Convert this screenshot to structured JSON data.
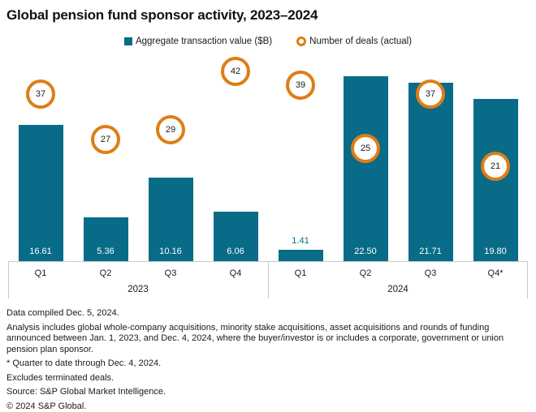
{
  "title": "Global pension fund sponsor activity, 2023–2024",
  "colors": {
    "bar": "#086b87",
    "deals_ring": "#df7d16",
    "axis_line": "#c9c9c9",
    "text": "#1a1a1a",
    "bar_label_inside": "#ffffff"
  },
  "legend": {
    "items": [
      {
        "label": "Aggregate transaction value ($B)",
        "marker": "square"
      },
      {
        "label": "Number of deals (actual)",
        "marker": "donut"
      }
    ]
  },
  "chart_data": {
    "type": "bar",
    "categories": [
      "Q1",
      "Q2",
      "Q3",
      "Q4",
      "Q1",
      "Q2",
      "Q3",
      "Q4*"
    ],
    "group_labels": [
      {
        "label": "2023",
        "start_col": 0,
        "end_col": 3
      },
      {
        "label": "2024",
        "start_col": 4,
        "end_col": 7
      }
    ],
    "series": [
      {
        "name": "Aggregate transaction value ($B)",
        "type": "bar",
        "values": [
          16.61,
          5.36,
          10.16,
          6.06,
          1.41,
          22.5,
          21.71,
          19.8
        ],
        "value_labels": [
          "16.61",
          "5.36",
          "10.16",
          "6.06",
          "1.41",
          "22.50",
          "21.71",
          "19.80"
        ],
        "axis_max": 25.4
      },
      {
        "name": "Number of deals (actual)",
        "type": "circle-marker",
        "values": [
          37,
          27,
          29,
          42,
          39,
          25,
          37,
          21
        ],
        "axis_max": 46.1
      }
    ],
    "ylim": [
      0,
      25.4
    ],
    "grid": false,
    "legend_position": "top-center"
  },
  "footnotes": [
    "Data compiled Dec. 5, 2024.",
    "Analysis includes global whole-company acquisitions, minority stake acquisitions, asset acquisitions and rounds of funding announced between Jan. 1, 2023, and Dec. 4, 2024, where the buyer/investor is or includes a corporate, government or union pension plan sponsor.",
    "* Quarter to date through Dec. 4, 2024.",
    "Excludes terminated deals.",
    "Source: S&P Global Market Intelligence.",
    "© 2024 S&P Global."
  ]
}
